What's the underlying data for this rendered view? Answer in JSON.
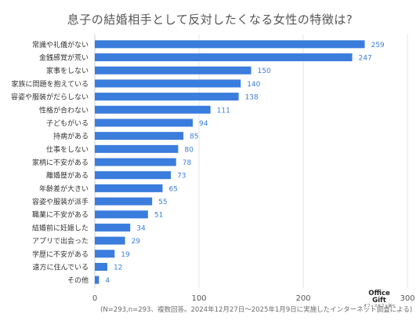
{
  "chart_data": {
    "type": "bar",
    "orientation": "horizontal",
    "title": "息子の結婚相手として反対したくなる女性の特徴は?",
    "categories": [
      "常識や礼儀がない",
      "金銭感覚が荒い",
      "家事をしない",
      "家族に問題を抱えている",
      "容姿や服装がだらしない",
      "性格が合わない",
      "子どもがいる",
      "持病がある",
      "仕事をしない",
      "家柄に不安がある",
      "離婚歴がある",
      "年齢差が大きい",
      "容姿や服装が派手",
      "職業に不安がある",
      "結婚前に妊娠した",
      "アプリで出会った",
      "学歴に不安がある",
      "遠方に住んでいる",
      "その他"
    ],
    "values": [
      259,
      247,
      150,
      140,
      138,
      111,
      94,
      85,
      80,
      78,
      73,
      65,
      55,
      51,
      34,
      29,
      19,
      12,
      4
    ],
    "xlim": [
      0,
      300
    ],
    "xticks": [
      0,
      100,
      200,
      300
    ],
    "grid": true,
    "bar_color": "#3b7ddd",
    "value_label_color": "#3b7ddd"
  },
  "footnote": "(N=293,n=293、複数回答。2024年12月27日〜2025年1月9日に実施したインターネット調査による)",
  "logo": {
    "line1": "Office",
    "line2": "Gift",
    "line3": "オフィスギフト調べ"
  }
}
